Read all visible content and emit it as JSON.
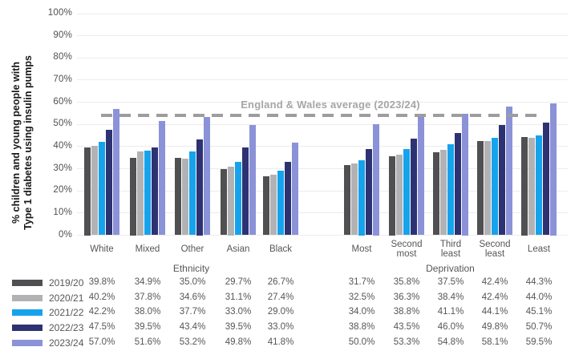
{
  "chart_data": {
    "type": "bar",
    "title": "",
    "ylabel_line1": "% children and young people with",
    "ylabel_line2": "Type 1 diabetes using insulin pumps",
    "ylim": [
      0,
      100
    ],
    "y_ticks": [
      0,
      10,
      20,
      30,
      40,
      50,
      60,
      70,
      80,
      90,
      100
    ],
    "y_tick_suffix": "%",
    "grid": true,
    "legend_position": "bottom-left-table",
    "annotation": {
      "label": "England & Wales average (2023/24)",
      "value": 54
    },
    "groups": [
      {
        "axis_label": "Ethnicity",
        "categories": [
          [
            "White"
          ],
          [
            "Mixed"
          ],
          [
            "Other"
          ],
          [
            "Asian"
          ],
          [
            "Black"
          ]
        ]
      },
      {
        "axis_label": "Deprivation",
        "categories": [
          [
            "Most"
          ],
          [
            "Second",
            "most"
          ],
          [
            "Third",
            "least"
          ],
          [
            "Second",
            "least"
          ],
          [
            "Least"
          ]
        ]
      }
    ],
    "series": [
      {
        "name": "2019/20",
        "color": "#505052",
        "values": [
          [
            39.8,
            34.9,
            35.0,
            29.7,
            26.7
          ],
          [
            31.7,
            35.8,
            37.5,
            42.4,
            44.3
          ]
        ]
      },
      {
        "name": "2020/21",
        "color": "#b2b2b4",
        "values": [
          [
            40.2,
            37.8,
            34.6,
            31.1,
            27.4
          ],
          [
            32.5,
            36.3,
            38.4,
            42.4,
            44.0
          ]
        ]
      },
      {
        "name": "2021/22",
        "color": "#16a3ec",
        "values": [
          [
            42.2,
            38.0,
            37.7,
            33.0,
            29.0
          ],
          [
            34.0,
            38.8,
            41.1,
            44.1,
            45.1
          ]
        ]
      },
      {
        "name": "2022/23",
        "color": "#2d3272",
        "values": [
          [
            47.5,
            39.5,
            43.4,
            39.5,
            33.0
          ],
          [
            38.8,
            43.5,
            46.0,
            49.8,
            50.7
          ]
        ]
      },
      {
        "name": "2023/24",
        "color": "#8b92d8",
        "values": [
          [
            57.0,
            51.6,
            53.2,
            49.8,
            41.8
          ],
          [
            50.0,
            53.3,
            54.8,
            58.1,
            59.5
          ]
        ]
      }
    ]
  }
}
